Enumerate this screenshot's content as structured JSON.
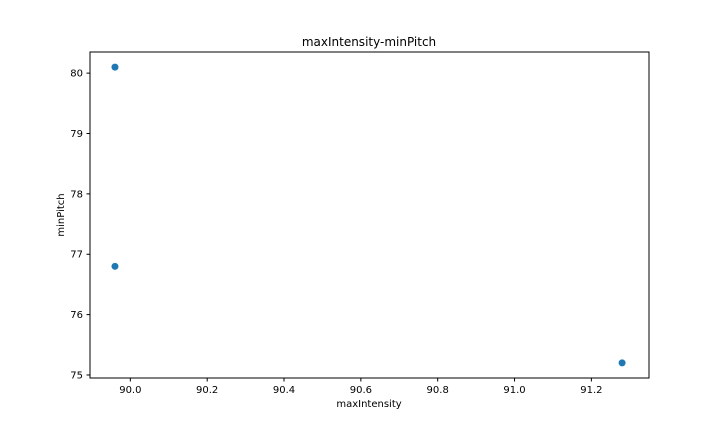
{
  "chart_data": {
    "type": "scatter",
    "title": "maxIntensity-minPitch",
    "xlabel": "maxIntensity",
    "ylabel": "minPitch",
    "xlim": [
      89.895,
      91.35
    ],
    "ylim": [
      74.95,
      80.35
    ],
    "xticks": [
      90.0,
      90.2,
      90.4,
      90.6,
      90.8,
      91.0,
      91.2
    ],
    "xtick_labels": [
      "90.0",
      "90.2",
      "90.4",
      "90.6",
      "90.8",
      "91.0",
      "91.2"
    ],
    "yticks": [
      75,
      76,
      77,
      78,
      79,
      80
    ],
    "ytick_labels": [
      "75",
      "76",
      "77",
      "78",
      "79",
      "80"
    ],
    "grid": false,
    "series": [
      {
        "color": "#1f77b4",
        "points": [
          {
            "x": 89.96,
            "y": 80.1
          },
          {
            "x": 89.96,
            "y": 76.8
          },
          {
            "x": 91.28,
            "y": 75.2
          }
        ]
      }
    ]
  }
}
